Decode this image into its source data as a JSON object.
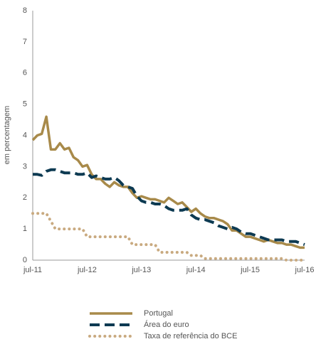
{
  "chart_data": {
    "type": "line",
    "y_label": "em percentagem",
    "categories": [
      "jul-11",
      null,
      null,
      null,
      null,
      null,
      null,
      null,
      null,
      null,
      null,
      null,
      "jul-12",
      null,
      null,
      null,
      null,
      null,
      null,
      null,
      null,
      null,
      null,
      null,
      "jul-13",
      null,
      null,
      null,
      null,
      null,
      null,
      null,
      null,
      null,
      null,
      null,
      "jul-14",
      null,
      null,
      null,
      null,
      null,
      null,
      null,
      null,
      null,
      null,
      null,
      "jul-15",
      null,
      null,
      null,
      null,
      null,
      null,
      null,
      null,
      null,
      null,
      null,
      "jul-16"
    ],
    "series": [
      {
        "name": "Portugal",
        "color": "#a88a4a",
        "style": "solid",
        "values": [
          3.85,
          4.0,
          4.05,
          4.6,
          3.55,
          3.55,
          3.75,
          3.55,
          3.6,
          3.3,
          3.2,
          3.0,
          3.05,
          2.75,
          2.6,
          2.6,
          2.45,
          2.35,
          2.5,
          2.4,
          2.35,
          2.35,
          2.15,
          2.0,
          2.05,
          2.0,
          1.95,
          1.95,
          1.9,
          1.85,
          2.0,
          1.9,
          1.8,
          1.85,
          1.7,
          1.55,
          1.65,
          1.5,
          1.4,
          1.35,
          1.35,
          1.3,
          1.25,
          1.15,
          0.95,
          0.95,
          0.85,
          0.75,
          0.75,
          0.7,
          0.65,
          0.6,
          0.65,
          0.6,
          0.55,
          0.55,
          0.5,
          0.5,
          0.45,
          0.4,
          0.4
        ]
      },
      {
        "name": "Área do euro",
        "color": "#0d3a52",
        "style": "dashed",
        "values": [
          2.75,
          2.75,
          2.72,
          2.85,
          2.9,
          2.9,
          2.85,
          2.8,
          2.8,
          2.8,
          2.75,
          2.75,
          2.8,
          2.65,
          2.7,
          2.65,
          2.6,
          2.6,
          2.65,
          2.55,
          2.4,
          2.35,
          2.3,
          2.05,
          1.9,
          1.85,
          1.85,
          1.8,
          1.8,
          1.75,
          1.65,
          1.6,
          1.6,
          1.6,
          1.65,
          1.45,
          1.35,
          1.3,
          1.3,
          1.25,
          1.2,
          1.1,
          1.05,
          1.0,
          1.05,
          1.0,
          0.9,
          0.85,
          0.85,
          0.8,
          0.75,
          0.7,
          0.65,
          0.65,
          0.65,
          0.65,
          0.6,
          0.6,
          0.6,
          0.55,
          0.5
        ]
      },
      {
        "name": "Taxa de referência do BCE",
        "color": "#c9aa80",
        "style": "dotted",
        "values": [
          1.5,
          1.5,
          1.5,
          1.5,
          1.25,
          1.0,
          1.0,
          1.0,
          1.0,
          1.0,
          1.0,
          1.0,
          0.75,
          0.75,
          0.75,
          0.75,
          0.75,
          0.75,
          0.75,
          0.75,
          0.75,
          0.75,
          0.5,
          0.5,
          0.5,
          0.5,
          0.5,
          0.5,
          0.25,
          0.25,
          0.25,
          0.25,
          0.25,
          0.25,
          0.25,
          0.15,
          0.15,
          0.15,
          0.05,
          0.05,
          0.05,
          0.05,
          0.05,
          0.05,
          0.05,
          0.05,
          0.05,
          0.05,
          0.05,
          0.05,
          0.05,
          0.05,
          0.05,
          0.05,
          0.05,
          0.05,
          0,
          0,
          0,
          0,
          0
        ]
      }
    ],
    "ylim": [
      0,
      8
    ],
    "yticks": [
      0,
      1,
      2,
      3,
      4,
      5,
      6,
      7,
      8
    ],
    "grid": false
  }
}
